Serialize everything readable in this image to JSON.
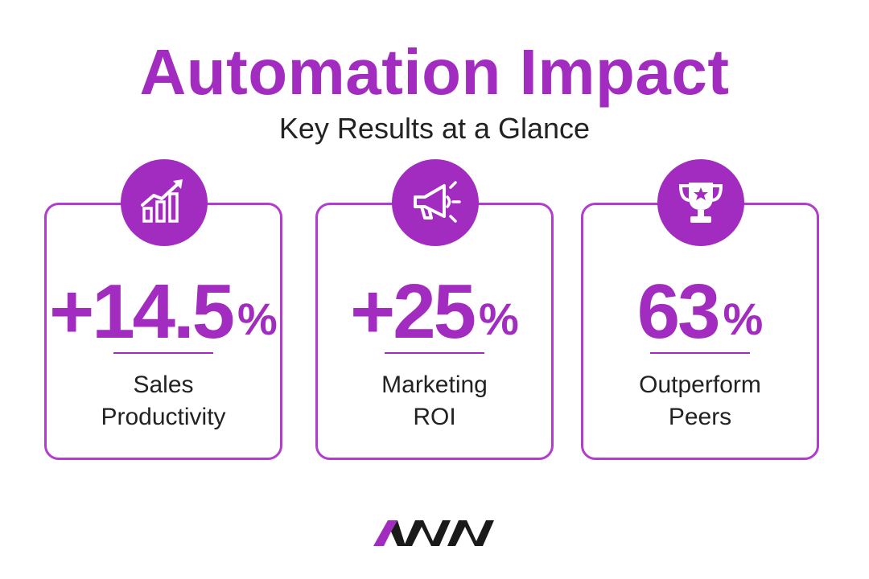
{
  "header": {
    "title": "Automation Impact",
    "subtitle": "Key Results at a Glance"
  },
  "cards": [
    {
      "icon": "chart-growth-icon",
      "value": "+14.5",
      "unit": "%",
      "label_line1": "Sales",
      "label_line2": "Productivity"
    },
    {
      "icon": "megaphone-icon",
      "value": "+25",
      "unit": "%",
      "label_line1": "Marketing",
      "label_line2": "ROI"
    },
    {
      "icon": "trophy-icon",
      "value": "63",
      "unit": "%",
      "label_line1": "Outperform",
      "label_line2": "Peers"
    }
  ],
  "colors": {
    "accent": "#a22cbf",
    "text": "#222222",
    "logo_dark": "#1a1a1a"
  },
  "logo": {
    "name": "brand-logo"
  }
}
